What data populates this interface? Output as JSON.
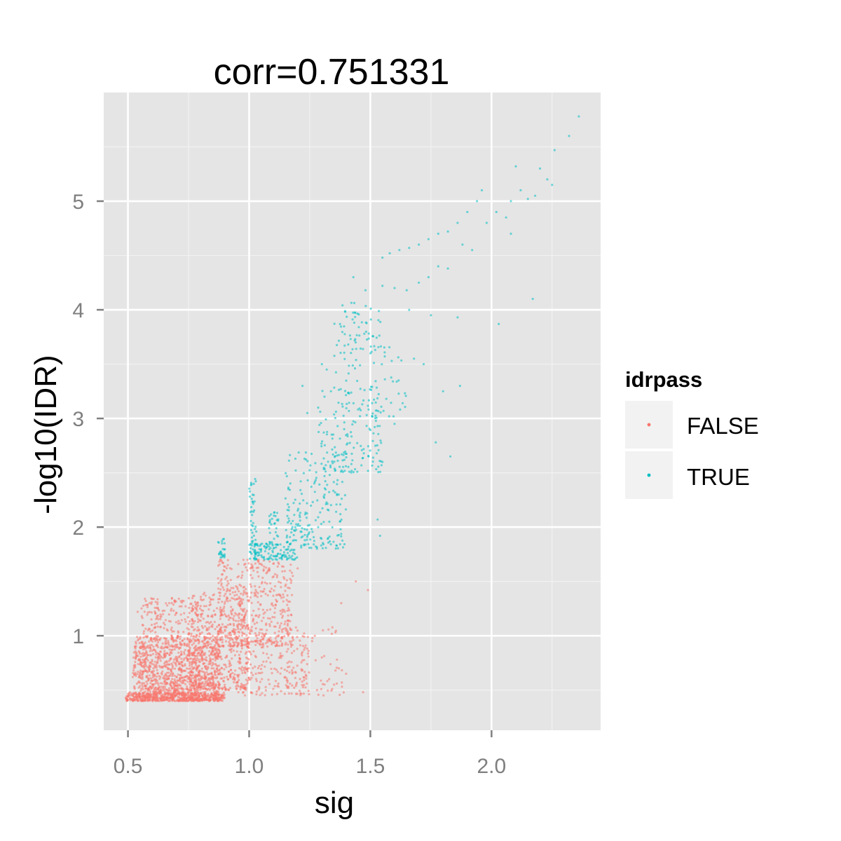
{
  "chart_data": {
    "type": "scatter",
    "title": "corr=0.751331",
    "xlabel": "sig",
    "ylabel": "-log10(IDR)",
    "xlim": [
      0.4,
      2.45
    ],
    "ylim": [
      0.13,
      6.0
    ],
    "x_ticks": [
      0.5,
      1.0,
      1.5,
      2.0
    ],
    "x_tick_labels": [
      "0.5",
      "1.0",
      "1.5",
      "2.0"
    ],
    "y_ticks": [
      1,
      2,
      3,
      4,
      5
    ],
    "y_tick_labels": [
      "1",
      "2",
      "3",
      "4",
      "5"
    ],
    "grid": true,
    "legend": {
      "title": "idrpass",
      "position": "right",
      "entries": [
        "FALSE",
        "TRUE"
      ]
    },
    "colors": {
      "FALSE": "#f8766d",
      "TRUE": "#00bfc4",
      "panel_background": "#e5e5e5",
      "grid_major": "#ffffff",
      "grid_minor": "#f2f2f2",
      "legend_key_background": "#f2f2f2"
    },
    "series": [
      {
        "name": "FALSE",
        "clusters": [
          {
            "x": [
              0.49,
              0.9
            ],
            "y": [
              0.4,
              0.48
            ],
            "n": 450
          },
          {
            "x": [
              0.52,
              0.88
            ],
            "y": [
              0.4,
              1.0
            ],
            "n": 900
          },
          {
            "x": [
              0.55,
              0.8
            ],
            "y": [
              0.45,
              1.35
            ],
            "n": 420
          },
          {
            "x": [
              0.75,
              1.0
            ],
            "y": [
              0.5,
              1.4
            ],
            "n": 520
          },
          {
            "x": [
              0.87,
              1.18
            ],
            "y": [
              0.9,
              1.7
            ],
            "n": 480
          },
          {
            "x": [
              0.95,
              1.25
            ],
            "y": [
              0.45,
              1.0
            ],
            "n": 180
          },
          {
            "x": [
              1.15,
              1.4
            ],
            "y": [
              0.45,
              1.1
            ],
            "n": 60
          }
        ],
        "points": [
          {
            "x": 0.57,
            "y": 1.34
          },
          {
            "x": 0.54,
            "y": 1.22
          },
          {
            "x": 0.56,
            "y": 1.1
          },
          {
            "x": 1.18,
            "y": 1.55
          },
          {
            "x": 1.2,
            "y": 1.62
          },
          {
            "x": 1.26,
            "y": 0.95
          },
          {
            "x": 1.3,
            "y": 0.8
          },
          {
            "x": 1.35,
            "y": 0.55
          },
          {
            "x": 1.37,
            "y": 0.7
          },
          {
            "x": 1.38,
            "y": 1.3
          },
          {
            "x": 1.4,
            "y": 0.65
          },
          {
            "x": 1.47,
            "y": 0.48
          },
          {
            "x": 1.44,
            "y": 1.5
          },
          {
            "x": 1.49,
            "y": 1.42
          },
          {
            "x": 1.28,
            "y": 0.5
          },
          {
            "x": 1.22,
            "y": 0.85
          },
          {
            "x": 1.33,
            "y": 0.6
          }
        ]
      },
      {
        "name": "TRUE",
        "clusters": [
          {
            "x": [
              0.87,
              0.9
            ],
            "y": [
              1.72,
              1.9
            ],
            "n": 25
          },
          {
            "x": [
              1.0,
              1.2
            ],
            "y": [
              1.7,
              1.85
            ],
            "n": 120
          },
          {
            "x": [
              1.0,
              1.03
            ],
            "y": [
              1.75,
              2.45
            ],
            "n": 45
          },
          {
            "x": [
              1.08,
              1.12
            ],
            "y": [
              1.8,
              2.2
            ],
            "n": 30
          },
          {
            "x": [
              1.15,
              1.4
            ],
            "y": [
              1.8,
              2.7
            ],
            "n": 200
          },
          {
            "x": [
              1.28,
              1.55
            ],
            "y": [
              2.5,
              3.3
            ],
            "n": 140
          },
          {
            "x": [
              1.35,
              1.65
            ],
            "y": [
              3.0,
              3.7
            ],
            "n": 70
          },
          {
            "x": [
              1.35,
              1.55
            ],
            "y": [
              3.6,
              4.1
            ],
            "n": 60
          }
        ],
        "points": [
          {
            "x": 1.55,
            "y": 2.6
          },
          {
            "x": 1.53,
            "y": 2.07
          },
          {
            "x": 1.54,
            "y": 1.92
          },
          {
            "x": 1.43,
            "y": 4.3
          },
          {
            "x": 1.48,
            "y": 4.18
          },
          {
            "x": 1.55,
            "y": 4.22
          },
          {
            "x": 1.6,
            "y": 4.2
          },
          {
            "x": 1.65,
            "y": 4.18
          },
          {
            "x": 1.7,
            "y": 4.25
          },
          {
            "x": 1.74,
            "y": 4.3
          },
          {
            "x": 1.78,
            "y": 4.4
          },
          {
            "x": 1.82,
            "y": 4.38
          },
          {
            "x": 1.66,
            "y": 4.0
          },
          {
            "x": 1.75,
            "y": 3.95
          },
          {
            "x": 1.86,
            "y": 3.93
          },
          {
            "x": 1.55,
            "y": 4.48
          },
          {
            "x": 1.58,
            "y": 4.52
          },
          {
            "x": 1.62,
            "y": 4.55
          },
          {
            "x": 1.66,
            "y": 4.57
          },
          {
            "x": 1.7,
            "y": 4.6
          },
          {
            "x": 1.74,
            "y": 4.65
          },
          {
            "x": 1.78,
            "y": 4.7
          },
          {
            "x": 1.82,
            "y": 4.72
          },
          {
            "x": 1.86,
            "y": 4.8
          },
          {
            "x": 1.9,
            "y": 4.9
          },
          {
            "x": 1.94,
            "y": 5.0
          },
          {
            "x": 1.96,
            "y": 5.1
          },
          {
            "x": 1.88,
            "y": 4.6
          },
          {
            "x": 1.92,
            "y": 4.55
          },
          {
            "x": 1.98,
            "y": 4.8
          },
          {
            "x": 2.02,
            "y": 4.9
          },
          {
            "x": 2.06,
            "y": 4.85
          },
          {
            "x": 2.08,
            "y": 5.0
          },
          {
            "x": 2.12,
            "y": 5.1
          },
          {
            "x": 2.15,
            "y": 5.02
          },
          {
            "x": 2.18,
            "y": 5.05
          },
          {
            "x": 2.2,
            "y": 5.3
          },
          {
            "x": 2.23,
            "y": 5.2
          },
          {
            "x": 2.25,
            "y": 5.15
          },
          {
            "x": 2.1,
            "y": 5.32
          },
          {
            "x": 2.08,
            "y": 4.7
          },
          {
            "x": 2.26,
            "y": 5.47
          },
          {
            "x": 2.32,
            "y": 5.6
          },
          {
            "x": 2.36,
            "y": 5.78
          },
          {
            "x": 2.17,
            "y": 4.1
          },
          {
            "x": 2.03,
            "y": 3.87
          },
          {
            "x": 1.87,
            "y": 3.3
          },
          {
            "x": 1.77,
            "y": 2.78
          },
          {
            "x": 1.83,
            "y": 2.65
          },
          {
            "x": 1.72,
            "y": 3.5
          },
          {
            "x": 1.8,
            "y": 3.25
          },
          {
            "x": 1.68,
            "y": 3.55
          },
          {
            "x": 1.22,
            "y": 3.3
          },
          {
            "x": 1.24,
            "y": 3.05
          },
          {
            "x": 1.3,
            "y": 3.5
          },
          {
            "x": 1.32,
            "y": 3.45
          },
          {
            "x": 1.6,
            "y": 2.95
          }
        ]
      }
    ]
  }
}
